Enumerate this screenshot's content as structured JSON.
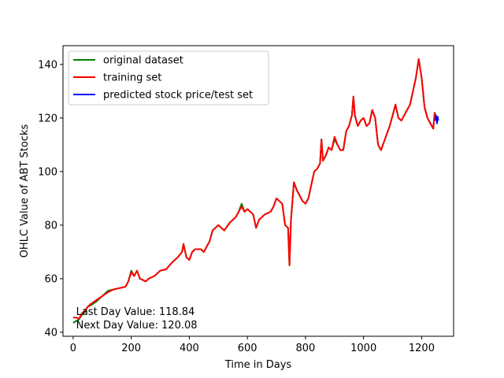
{
  "chart_data": {
    "type": "line",
    "xlabel": "Time in Days",
    "ylabel": "OHLC Value of ABT Stocks",
    "xlim": [
      -35,
      1310
    ],
    "ylim": [
      38.5,
      147
    ],
    "xticks": [
      0,
      200,
      400,
      600,
      800,
      1000,
      1200
    ],
    "yticks": [
      40,
      60,
      80,
      100,
      120,
      140
    ],
    "legend_position": "upper-left",
    "grid": false,
    "series": [
      {
        "name": "original dataset",
        "color": "#008000",
        "points": [
          [
            0,
            43.5
          ],
          [
            10,
            44.2
          ],
          [
            20,
            44.8
          ],
          [
            30,
            46.5
          ],
          [
            40,
            47.5
          ],
          [
            50,
            49.5
          ],
          [
            60,
            50
          ],
          [
            80,
            51.5
          ],
          [
            100,
            53.5
          ],
          [
            120,
            55.5
          ],
          [
            140,
            56
          ],
          [
            160,
            56.5
          ],
          [
            180,
            57
          ],
          [
            190,
            59
          ],
          [
            200,
            63
          ],
          [
            210,
            61
          ],
          [
            220,
            63
          ],
          [
            230,
            60
          ],
          [
            250,
            59
          ],
          [
            260,
            60
          ],
          [
            280,
            61
          ],
          [
            300,
            63
          ],
          [
            320,
            63.5
          ],
          [
            340,
            66
          ],
          [
            360,
            68
          ],
          [
            375,
            70
          ],
          [
            380,
            73
          ],
          [
            390,
            68
          ],
          [
            400,
            67
          ],
          [
            410,
            70
          ],
          [
            420,
            71
          ],
          [
            440,
            71
          ],
          [
            450,
            70
          ],
          [
            460,
            72
          ],
          [
            470,
            74
          ],
          [
            480,
            78
          ],
          [
            490,
            79
          ],
          [
            500,
            80
          ],
          [
            520,
            78
          ],
          [
            540,
            81
          ],
          [
            560,
            83
          ],
          [
            570,
            85
          ],
          [
            580,
            88
          ],
          [
            590,
            85
          ],
          [
            600,
            86
          ],
          [
            620,
            84
          ],
          [
            630,
            79
          ],
          [
            640,
            82
          ],
          [
            660,
            84
          ],
          [
            680,
            85
          ],
          [
            690,
            87
          ],
          [
            700,
            90
          ],
          [
            710,
            89
          ],
          [
            720,
            88
          ],
          [
            730,
            80
          ],
          [
            740,
            79
          ],
          [
            745,
            65
          ],
          [
            750,
            82
          ],
          [
            760,
            96
          ],
          [
            770,
            93
          ],
          [
            780,
            91
          ],
          [
            790,
            89
          ],
          [
            800,
            88
          ],
          [
            810,
            90
          ],
          [
            820,
            95
          ],
          [
            830,
            100
          ],
          [
            840,
            101
          ],
          [
            850,
            103
          ],
          [
            855,
            112
          ],
          [
            860,
            104
          ],
          [
            870,
            106
          ],
          [
            880,
            109
          ],
          [
            890,
            108
          ],
          [
            900,
            112
          ],
          [
            910,
            110
          ],
          [
            920,
            108
          ],
          [
            930,
            108
          ],
          [
            940,
            115
          ],
          [
            950,
            117
          ],
          [
            960,
            121
          ],
          [
            965,
            128
          ],
          [
            970,
            121
          ],
          [
            980,
            117
          ],
          [
            990,
            119
          ],
          [
            1000,
            120
          ],
          [
            1010,
            117
          ],
          [
            1020,
            118
          ],
          [
            1030,
            123
          ],
          [
            1040,
            120
          ],
          [
            1050,
            110
          ],
          [
            1060,
            108
          ],
          [
            1070,
            111
          ],
          [
            1080,
            114
          ],
          [
            1090,
            117
          ],
          [
            1100,
            121
          ],
          [
            1110,
            125
          ],
          [
            1120,
            120
          ],
          [
            1130,
            119
          ],
          [
            1140,
            121
          ],
          [
            1150,
            123
          ],
          [
            1160,
            125
          ],
          [
            1170,
            130
          ],
          [
            1180,
            135
          ],
          [
            1190,
            142
          ],
          [
            1200,
            135
          ],
          [
            1210,
            124
          ],
          [
            1220,
            120
          ],
          [
            1230,
            118
          ],
          [
            1240,
            116
          ],
          [
            1245,
            122
          ],
          [
            1250,
            120
          ]
        ]
      },
      {
        "name": "training set",
        "color": "#ff0000",
        "points": [
          [
            0,
            45.5
          ],
          [
            10,
            45.5
          ],
          [
            20,
            45
          ],
          [
            30,
            47
          ],
          [
            40,
            48
          ],
          [
            50,
            49.5
          ],
          [
            60,
            50.5
          ],
          [
            80,
            52
          ],
          [
            100,
            53.5
          ],
          [
            120,
            55
          ],
          [
            140,
            56
          ],
          [
            160,
            56.5
          ],
          [
            180,
            57
          ],
          [
            190,
            59
          ],
          [
            200,
            62.5
          ],
          [
            210,
            61
          ],
          [
            220,
            63
          ],
          [
            230,
            60
          ],
          [
            250,
            59
          ],
          [
            260,
            60
          ],
          [
            280,
            61
          ],
          [
            300,
            63
          ],
          [
            320,
            63.5
          ],
          [
            340,
            66
          ],
          [
            360,
            68
          ],
          [
            375,
            70
          ],
          [
            380,
            73
          ],
          [
            390,
            68
          ],
          [
            400,
            67
          ],
          [
            410,
            70
          ],
          [
            420,
            71
          ],
          [
            440,
            71
          ],
          [
            450,
            70
          ],
          [
            460,
            72
          ],
          [
            470,
            74
          ],
          [
            480,
            78
          ],
          [
            490,
            79
          ],
          [
            500,
            80
          ],
          [
            520,
            78
          ],
          [
            540,
            81
          ],
          [
            560,
            83
          ],
          [
            570,
            85
          ],
          [
            580,
            87
          ],
          [
            590,
            85
          ],
          [
            600,
            86
          ],
          [
            620,
            84
          ],
          [
            630,
            79
          ],
          [
            640,
            82
          ],
          [
            660,
            84
          ],
          [
            680,
            85
          ],
          [
            690,
            87
          ],
          [
            700,
            90
          ],
          [
            710,
            89
          ],
          [
            720,
            88
          ],
          [
            730,
            80
          ],
          [
            740,
            79
          ],
          [
            745,
            65
          ],
          [
            750,
            82
          ],
          [
            760,
            96
          ],
          [
            770,
            93
          ],
          [
            780,
            91
          ],
          [
            790,
            89
          ],
          [
            800,
            88
          ],
          [
            810,
            90
          ],
          [
            820,
            95
          ],
          [
            830,
            100
          ],
          [
            840,
            101
          ],
          [
            850,
            103
          ],
          [
            855,
            112
          ],
          [
            860,
            104
          ],
          [
            870,
            106
          ],
          [
            880,
            109
          ],
          [
            890,
            108
          ],
          [
            900,
            113
          ],
          [
            910,
            110
          ],
          [
            920,
            108
          ],
          [
            930,
            108
          ],
          [
            940,
            115
          ],
          [
            950,
            117
          ],
          [
            960,
            121
          ],
          [
            965,
            128
          ],
          [
            970,
            121
          ],
          [
            980,
            117
          ],
          [
            990,
            119
          ],
          [
            1000,
            120
          ],
          [
            1010,
            117
          ],
          [
            1020,
            118
          ],
          [
            1030,
            123
          ],
          [
            1040,
            120
          ],
          [
            1050,
            110
          ],
          [
            1060,
            108
          ],
          [
            1070,
            111
          ],
          [
            1080,
            114
          ],
          [
            1090,
            117
          ],
          [
            1100,
            121
          ],
          [
            1110,
            125
          ],
          [
            1120,
            120
          ],
          [
            1130,
            119
          ],
          [
            1140,
            121
          ],
          [
            1150,
            123
          ],
          [
            1160,
            125
          ],
          [
            1170,
            130
          ],
          [
            1180,
            135
          ],
          [
            1190,
            142
          ],
          [
            1200,
            135
          ],
          [
            1210,
            124
          ],
          [
            1220,
            120
          ],
          [
            1230,
            118
          ],
          [
            1240,
            116
          ],
          [
            1245,
            122
          ]
        ]
      },
      {
        "name": "predicted stock price/test set",
        "color": "#0000ff",
        "points": [
          [
            1247,
            119
          ],
          [
            1249,
            121
          ],
          [
            1251,
            119.5
          ],
          [
            1253,
            118
          ],
          [
            1255,
            120.5
          ],
          [
            1257,
            119
          ]
        ]
      }
    ],
    "annotations": [
      {
        "text": "Last Day Value: 118.84",
        "x": 10,
        "y": 46.5
      },
      {
        "text": "Next Day Value: 120.08",
        "x": 10,
        "y": 41.5
      }
    ]
  }
}
